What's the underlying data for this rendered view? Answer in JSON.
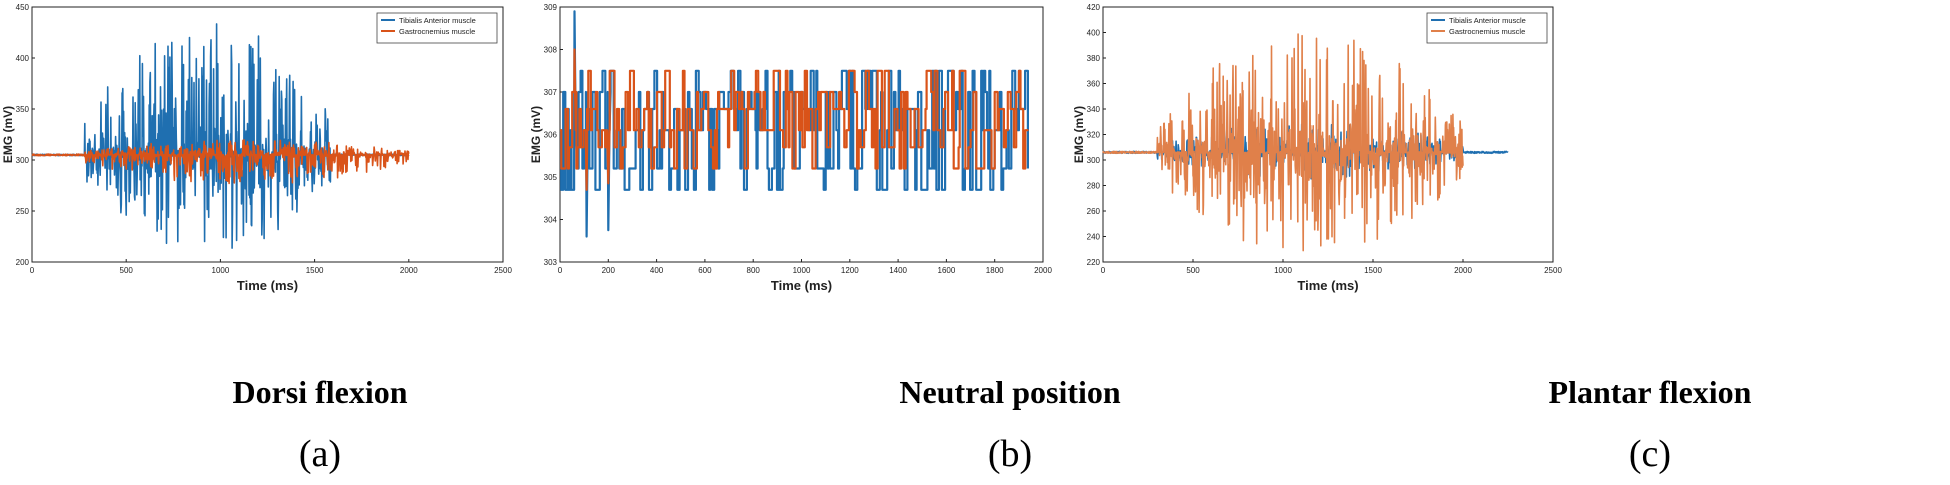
{
  "chart_data": [
    {
      "type": "line",
      "title": "Dorsi flexion",
      "panel_label": "(a)",
      "xlabel": "Time (ms)",
      "ylabel": "EMG (mV)",
      "xlim": [
        0,
        2500
      ],
      "ylim": [
        200,
        450
      ],
      "xticks": [
        0,
        500,
        1000,
        1500,
        2000,
        2500
      ],
      "yticks": [
        200,
        250,
        300,
        350,
        400,
        450
      ],
      "legend_position": "top-right",
      "series": [
        {
          "name": "Tibialis  Anterior muscle",
          "color": "#1f6fb0",
          "baseline": 305,
          "x_start": 0,
          "x_end": 2000,
          "active_range": [
            280,
            1600
          ],
          "peak_value": 438,
          "min_value": 207
        },
        {
          "name": "Gastrocnemius muscle",
          "color": "#d95319",
          "baseline": 305,
          "x_start": 0,
          "x_end": 2000,
          "active_range": [
            280,
            2000
          ],
          "peak_value": 320,
          "min_value": 275
        }
      ]
    },
    {
      "type": "line",
      "title": "Neutral position",
      "panel_label": "(b)",
      "xlabel": "Time (ms)",
      "ylabel": "EMG (mV)",
      "xlim": [
        0,
        2000
      ],
      "ylim": [
        303,
        309
      ],
      "xticks": [
        0,
        200,
        400,
        600,
        800,
        1000,
        1200,
        1400,
        1600,
        1800,
        2000
      ],
      "yticks": [
        303,
        304,
        305,
        306,
        307,
        308,
        309
      ],
      "series": [
        {
          "name": "Tibialis Anterior muscle",
          "color": "#1f6fb0",
          "levels": [
            304.7,
            305.2,
            306.1,
            306.6,
            307.0,
            307.5
          ],
          "x_start": 0,
          "x_end": 1930,
          "peak_value": 308.9,
          "min_value": 303.6
        },
        {
          "name": "Gastrocnemius muscle",
          "color": "#d95319",
          "levels": [
            305.2,
            305.7,
            306.1,
            306.6,
            307.0,
            307.5
          ],
          "x_start": 0,
          "x_end": 1930,
          "peak_value": 308.0,
          "min_value": 304.7
        }
      ]
    },
    {
      "type": "line",
      "title": "Plantar flexion",
      "panel_label": "(c)",
      "xlabel": "Time (ms)",
      "ylabel": "EMG (mV)",
      "xlim": [
        0,
        2500
      ],
      "ylim": [
        220,
        420
      ],
      "xticks": [
        0,
        500,
        1000,
        1500,
        2000,
        2500
      ],
      "yticks": [
        220,
        240,
        260,
        280,
        300,
        320,
        340,
        360,
        380,
        400,
        420
      ],
      "legend_position": "top-right",
      "series": [
        {
          "name": "Tibialis Anterior muscle",
          "color": "#1f6fb0",
          "baseline": 306,
          "x_start": 0,
          "x_end": 2250,
          "active_range": [
            300,
            2000
          ],
          "peak_value": 330,
          "min_value": 285
        },
        {
          "name": "Gastrocnemius muscle",
          "color": "#e0804a",
          "baseline": 306,
          "x_start": 0,
          "x_end": 2000,
          "active_range": [
            300,
            2000
          ],
          "peak_value": 401,
          "min_value": 225
        }
      ]
    }
  ]
}
